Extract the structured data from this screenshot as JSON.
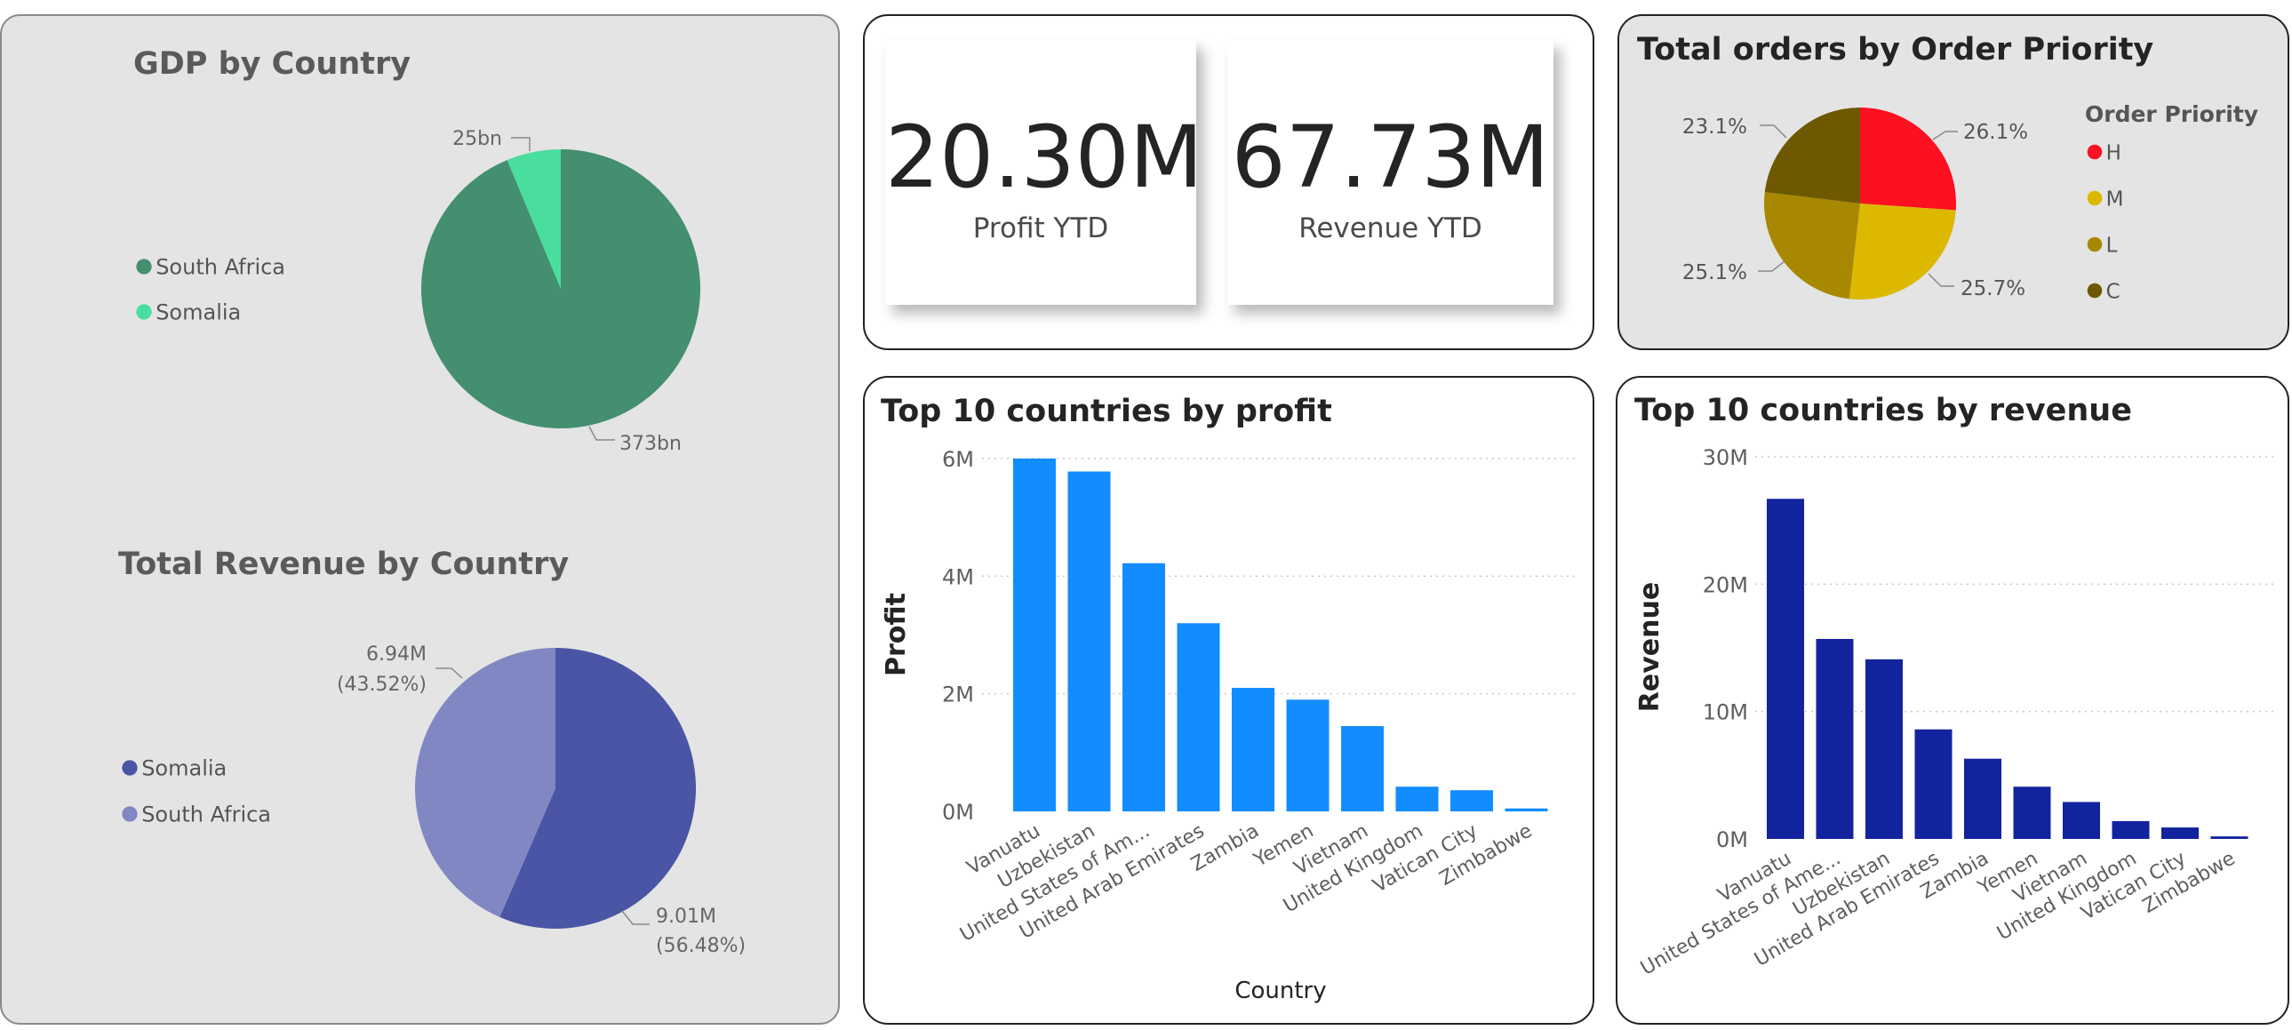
{
  "gdp_chart": {
    "title": "GDP by Country",
    "chart_data": {
      "type": "pie",
      "title": "GDP by Country",
      "slices": [
        {
          "name": "South Africa",
          "value": 373,
          "label": "373bn",
          "color": "#438f6f"
        },
        {
          "name": "Somalia",
          "value": 25,
          "label": "25bn",
          "color": "#4ade9e"
        }
      ]
    }
  },
  "revenue_country_chart": {
    "title": "Total Revenue by Country",
    "chart_data": {
      "type": "pie",
      "title": "Total Revenue by Country",
      "slices": [
        {
          "name": "Somalia",
          "value": 9.01,
          "label": "9.01M",
          "pct": "(56.48%)",
          "color": "#4a55a5"
        },
        {
          "name": "South Africa",
          "value": 6.94,
          "label": "6.94M",
          "pct": "(43.52%)",
          "color": "#8187c2"
        }
      ]
    }
  },
  "kpis": {
    "profit": {
      "value": "20.30M",
      "label": "Profit YTD"
    },
    "revenue": {
      "value": "67.73M",
      "label": "Revenue YTD"
    }
  },
  "priority_chart": {
    "title": "Total orders by Order Priority",
    "legend_title": "Order Priority",
    "chart_data": {
      "type": "pie",
      "title": "Total orders by Order Priority",
      "legend_title": "Order Priority",
      "slices": [
        {
          "name": "H",
          "value": 26.1,
          "label": "26.1%",
          "color": "#fd1020"
        },
        {
          "name": "M",
          "value": 25.7,
          "label": "25.7%",
          "color": "#dcb800"
        },
        {
          "name": "L",
          "value": 25.1,
          "label": "25.1%",
          "color": "#a78800"
        },
        {
          "name": "C",
          "value": 23.1,
          "label": "23.1%",
          "color": "#6e5800"
        }
      ]
    }
  },
  "profit_chart": {
    "title": "Top 10 countries by profit",
    "chart_data": {
      "type": "bar",
      "title": "Top 10 countries by profit",
      "xlabel": "Country",
      "ylabel": "Profit",
      "ylim": [
        0,
        6
      ],
      "unit_suffix": "M",
      "yticks": [
        "0M",
        "2M",
        "4M",
        "6M"
      ],
      "ytick_values": [
        0,
        2,
        4,
        6
      ],
      "categories": [
        "Vanuatu",
        "Uzbekistan",
        "United States of Am...",
        "United Arab Emirates",
        "Zambia",
        "Yemen",
        "Vietnam",
        "United Kingdom",
        "Vatican City",
        "Zimbabwe"
      ],
      "values": [
        6.0,
        5.78,
        4.22,
        3.2,
        2.1,
        1.9,
        1.45,
        0.42,
        0.36,
        0.05
      ],
      "color": "#118dff",
      "grid": true
    }
  },
  "revenue_chart": {
    "title": "Top 10 countries by revenue",
    "chart_data": {
      "type": "bar",
      "title": "Top 10 countries by revenue",
      "xlabel": "",
      "ylabel": "Revenue",
      "ylim": [
        0,
        30
      ],
      "unit_suffix": "M",
      "yticks": [
        "0M",
        "10M",
        "20M",
        "30M"
      ],
      "ytick_values": [
        0,
        10,
        20,
        30
      ],
      "categories": [
        "Vanuatu",
        "United States of Ame...",
        "Uzbekistan",
        "United Arab Emirates",
        "Zambia",
        "Yemen",
        "Vietnam",
        "United Kingdom",
        "Vatican City",
        "Zimbabwe"
      ],
      "values": [
        26.7,
        15.7,
        14.1,
        8.6,
        6.3,
        4.1,
        2.9,
        1.4,
        0.9,
        0.2
      ],
      "color": "#12239e",
      "grid": true
    }
  }
}
